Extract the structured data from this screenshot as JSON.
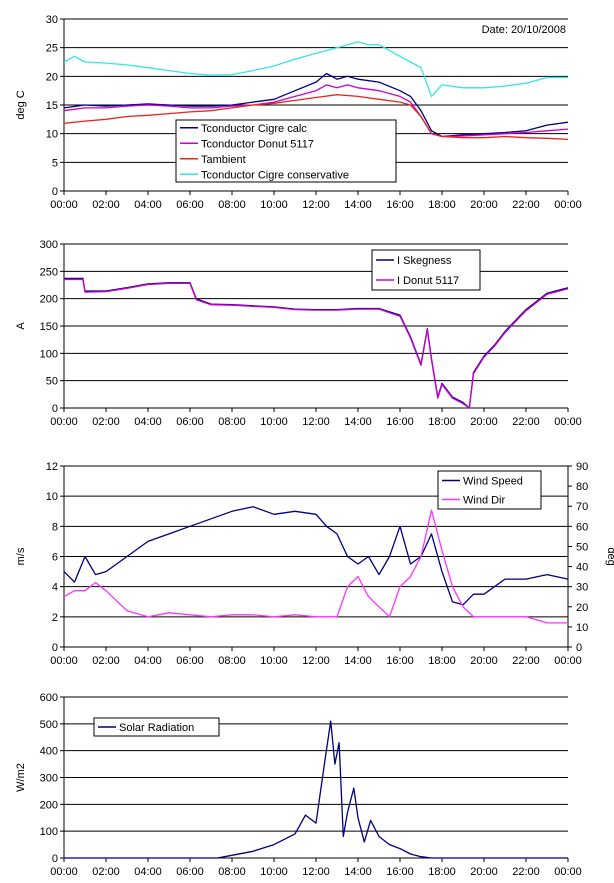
{
  "chart_data": [
    {
      "type": "line",
      "ylabel": "deg C",
      "ylim": [
        0,
        30
      ],
      "yticks": [
        0,
        5,
        10,
        15,
        20,
        25,
        30
      ],
      "xticks": [
        "00:00",
        "02:00",
        "04:00",
        "06:00",
        "08:00",
        "10:00",
        "12:00",
        "14:00",
        "16:00",
        "18:00",
        "20:00",
        "22:00",
        "00:00"
      ],
      "x_unit": "hours",
      "grid": "horizontal",
      "annotation": "Date: 20/10/2008",
      "legend_position": "bottom-left",
      "series": [
        {
          "name": "Tconductor Cigre calc",
          "color": "#000080",
          "x": [
            0,
            1,
            2,
            3,
            4,
            5,
            6,
            7,
            8,
            9,
            10,
            11,
            12,
            12.5,
            13,
            13.5,
            14,
            15,
            16,
            16.5,
            17,
            17.5,
            18,
            19,
            20,
            21,
            22,
            23,
            24
          ],
          "y": [
            14.5,
            15,
            14.8,
            15,
            15.2,
            15,
            14.8,
            14.8,
            15,
            15.5,
            16,
            17.5,
            19,
            20.5,
            19.5,
            20,
            19.5,
            19,
            17.5,
            16.5,
            14,
            10.5,
            9.5,
            9.8,
            10,
            10.2,
            10.5,
            11.5,
            12
          ]
        },
        {
          "name": "Tconductor Donut 5117",
          "color": "#cc00cc",
          "x": [
            0,
            1,
            2,
            3,
            4,
            5,
            6,
            7,
            8,
            9,
            10,
            11,
            12,
            12.5,
            13,
            13.5,
            14,
            15,
            16,
            16.5,
            17,
            17.5,
            18,
            19,
            20,
            21,
            22,
            23,
            24
          ],
          "y": [
            14,
            14.5,
            14.5,
            14.8,
            15,
            14.8,
            14.5,
            14.5,
            14.8,
            15,
            15.5,
            16.5,
            17.5,
            18.5,
            18,
            18.5,
            18,
            17.5,
            16.5,
            15.5,
            13,
            10,
            9.5,
            9.6,
            9.8,
            10,
            10.2,
            10.5,
            10.8
          ]
        },
        {
          "name": "Tambient",
          "color": "#e8261b",
          "x": [
            0,
            1,
            2,
            3,
            4,
            5,
            6,
            7,
            8,
            9,
            10,
            11,
            12,
            13,
            14,
            15,
            16,
            16.5,
            17,
            17.5,
            18,
            19,
            20,
            21,
            22,
            23,
            24
          ],
          "y": [
            11.8,
            12.2,
            12.5,
            13,
            13.2,
            13.5,
            13.8,
            14,
            14.5,
            15,
            15.3,
            15.8,
            16.3,
            16.8,
            16.5,
            16,
            15.5,
            15,
            13,
            10,
            9.5,
            9.3,
            9.3,
            9.5,
            9.3,
            9.2,
            9
          ]
        },
        {
          "name": "Tconductor Cigre conservative",
          "color": "#33e6e6",
          "x": [
            0,
            0.5,
            1,
            2,
            3,
            4,
            5,
            6,
            7,
            8,
            9,
            10,
            11,
            12,
            13,
            14,
            14.5,
            15,
            16,
            16.5,
            17,
            17.5,
            18,
            19,
            20,
            21,
            22,
            23,
            24
          ],
          "y": [
            22.5,
            23.5,
            22.5,
            22.3,
            22,
            21.5,
            21,
            20.5,
            20.2,
            20.3,
            21,
            21.8,
            23,
            24,
            25,
            26,
            25.5,
            25.5,
            23.5,
            22.5,
            21.5,
            16.5,
            18.5,
            18,
            18,
            18.3,
            18.8,
            19.8,
            19.8
          ]
        }
      ]
    },
    {
      "type": "line",
      "ylabel": "A",
      "ylim": [
        0,
        300
      ],
      "yticks": [
        0,
        50,
        100,
        150,
        200,
        250,
        300
      ],
      "xticks": [
        "00:00",
        "02:00",
        "04:00",
        "06:00",
        "08:00",
        "10:00",
        "12:00",
        "14:00",
        "16:00",
        "18:00",
        "20:00",
        "22:00",
        "00:00"
      ],
      "x_unit": "hours",
      "grid": "horizontal",
      "legend_position": "top-right",
      "series": [
        {
          "name": "I Skegness",
          "color": "#000080",
          "x": [
            0,
            0.9,
            1,
            2,
            3,
            4,
            5,
            6,
            6.3,
            7,
            8,
            9,
            10,
            11,
            12,
            13,
            14,
            15,
            16,
            16.5,
            17,
            17.3,
            17.5,
            17.8,
            18,
            18.5,
            19,
            19.3,
            19.5,
            20,
            20.5,
            21,
            22,
            23,
            24
          ],
          "y": [
            237,
            237,
            214,
            214,
            220,
            227,
            229,
            229,
            200,
            190,
            189,
            187,
            185,
            181,
            180,
            180,
            182,
            182,
            170,
            130,
            80,
            145,
            90,
            20,
            45,
            20,
            10,
            0,
            65,
            95,
            115,
            140,
            180,
            210,
            220
          ]
        },
        {
          "name": "I Donut 5117",
          "color": "#cc00cc",
          "x": [
            0,
            0.9,
            1,
            2,
            3,
            4,
            5,
            6,
            6.3,
            7,
            8,
            9,
            10,
            11,
            12,
            13,
            14,
            15,
            16,
            16.5,
            17,
            17.3,
            17.5,
            17.8,
            18,
            18.5,
            19,
            19.3,
            19.5,
            20,
            20.5,
            21,
            22,
            23,
            24
          ],
          "y": [
            235,
            235,
            212,
            213,
            219,
            226,
            228,
            228,
            198,
            189,
            188,
            186,
            184,
            180,
            179,
            179,
            181,
            181,
            168,
            128,
            78,
            143,
            88,
            18,
            43,
            18,
            8,
            0,
            63,
            93,
            113,
            138,
            178,
            208,
            218
          ]
        }
      ]
    },
    {
      "type": "line",
      "ylabel": "m/s",
      "y2label": "deg",
      "ylim": [
        0,
        12
      ],
      "yticks": [
        0,
        2,
        4,
        6,
        8,
        10,
        12
      ],
      "y2lim": [
        0,
        90
      ],
      "y2ticks": [
        0,
        10,
        20,
        30,
        40,
        50,
        60,
        70,
        80,
        90
      ],
      "xticks": [
        "00:00",
        "02:00",
        "04:00",
        "06:00",
        "08:00",
        "10:00",
        "12:00",
        "14:00",
        "16:00",
        "18:00",
        "20:00",
        "22:00",
        "00:00"
      ],
      "x_unit": "hours",
      "grid": "horizontal",
      "legend_position": "top-right",
      "series": [
        {
          "name": "Wind Speed",
          "axis": "left",
          "color": "#000080",
          "x": [
            0,
            0.5,
            1,
            1.5,
            2,
            3,
            4,
            5,
            6,
            7,
            8,
            9,
            10,
            11,
            12,
            12.5,
            13,
            13.5,
            14,
            14.5,
            15,
            15.5,
            16,
            16.5,
            17,
            17.5,
            18,
            18.5,
            19,
            19.5,
            20,
            21,
            22,
            23,
            24
          ],
          "y": [
            5,
            4.3,
            6,
            4.8,
            5,
            6,
            7,
            7.5,
            8,
            8.5,
            9,
            9.3,
            8.8,
            9,
            8.8,
            8,
            7.5,
            6,
            5.5,
            6,
            4.8,
            6,
            8,
            5.5,
            6,
            7.5,
            5,
            3,
            2.8,
            3.5,
            3.5,
            4.5,
            4.5,
            4.8,
            4.5
          ]
        },
        {
          "name": "Wind Dir",
          "axis": "right",
          "color": "#ff33ff",
          "x": [
            0,
            0.5,
            1,
            1.5,
            2,
            3,
            4,
            5,
            6,
            7,
            8,
            9,
            10,
            11,
            12,
            13,
            13.5,
            14,
            14.5,
            15,
            15.5,
            16,
            16.5,
            17,
            17.5,
            18,
            18.5,
            19,
            19.5,
            20,
            21,
            22,
            23,
            24
          ],
          "y": [
            25,
            28,
            28,
            32,
            28,
            18,
            15,
            17,
            16,
            15,
            16,
            16,
            15,
            16,
            15,
            15,
            30,
            35,
            25,
            20,
            15,
            30,
            35,
            45,
            68,
            48,
            30,
            20,
            15,
            15,
            15,
            15,
            12,
            12
          ]
        }
      ]
    },
    {
      "type": "line",
      "ylabel": "W/m2",
      "ylim": [
        0,
        600
      ],
      "yticks": [
        0,
        100,
        200,
        300,
        400,
        500,
        600
      ],
      "xticks": [
        "00:00",
        "02:00",
        "04:00",
        "06:00",
        "08:00",
        "10:00",
        "12:00",
        "14:00",
        "16:00",
        "18:00",
        "20:00",
        "22:00",
        "00:00"
      ],
      "x_unit": "hours",
      "grid": "horizontal",
      "legend_position": "top-left",
      "series": [
        {
          "name": "Solar Radiation",
          "color": "#000080",
          "x": [
            0,
            7.3,
            8,
            9,
            10,
            11,
            11.5,
            12,
            12.4,
            12.7,
            12.9,
            13.1,
            13.3,
            13.5,
            13.8,
            14,
            14.3,
            14.6,
            15,
            15.5,
            16,
            16.5,
            17,
            17.5,
            24
          ],
          "y": [
            0,
            0,
            10,
            25,
            50,
            90,
            160,
            130,
            350,
            510,
            350,
            430,
            80,
            170,
            260,
            150,
            60,
            140,
            80,
            50,
            35,
            15,
            5,
            0,
            0
          ]
        }
      ]
    }
  ]
}
